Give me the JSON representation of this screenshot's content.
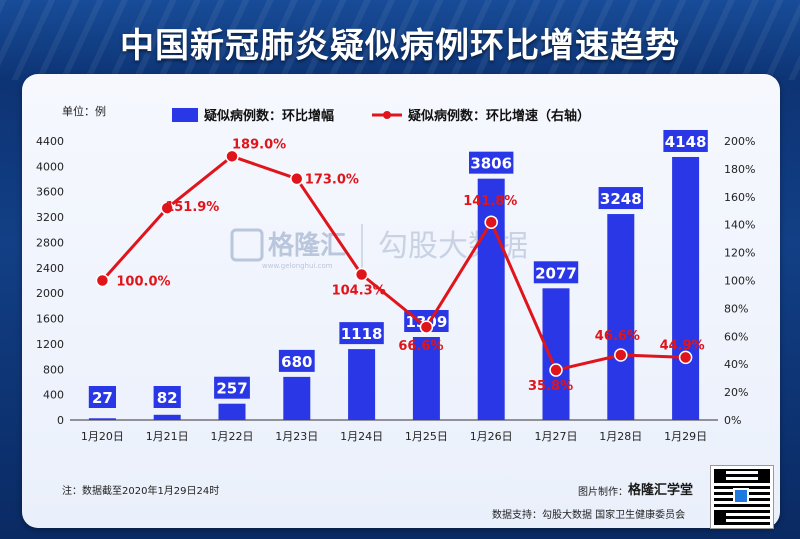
{
  "title": "中国新冠肺炎疑似病例环比增速趋势",
  "unit_label": "单位：例",
  "watermark_brand": "格隆汇",
  "watermark_url": "www.gelonghui.com",
  "watermark_text": "勾股大数据",
  "footnote": "注：数据截至2020年1月29日24时",
  "credit_made_by": "图片制作：",
  "credit_brand": "格隆汇学堂",
  "credit_source": "数据支持：勾股大数据 国家卫生健康委员会",
  "colors": {
    "bar": "#2a37e6",
    "line": "#e0141b",
    "background": "#0b2e6b",
    "card": "#f2f5fd"
  },
  "chart_data": {
    "type": "bar",
    "categories": [
      "1月20日",
      "1月21日",
      "1月22日",
      "1月23日",
      "1月24日",
      "1月25日",
      "1月26日",
      "1月27日",
      "1月28日",
      "1月29日"
    ],
    "series": [
      {
        "name": "疑似病例数：环比增幅",
        "type": "bar",
        "axis": "left",
        "values": [
          27,
          82,
          257,
          680,
          1118,
          1309,
          3806,
          2077,
          3248,
          4148
        ],
        "labels": [
          "27",
          "82",
          "257",
          "680",
          "1118",
          "1309",
          "3806",
          "2077",
          "3248",
          "4148"
        ]
      },
      {
        "name": "疑似病例数：环比增速（右轴）",
        "type": "line",
        "axis": "right",
        "values": [
          100.0,
          151.9,
          189.0,
          173.0,
          104.3,
          66.6,
          141.8,
          35.8,
          46.6,
          44.9
        ],
        "labels": [
          "100.0%",
          "151.9%",
          "189.0%",
          "173.0%",
          "104.3%",
          "66.6%",
          "141.8%",
          "35.8%",
          "46.6%",
          "44.9%"
        ]
      }
    ],
    "y_left": {
      "min": 0,
      "max": 4400,
      "ticks": [
        "0",
        "400",
        "800",
        "1200",
        "1600",
        "2000",
        "2400",
        "2800",
        "3200",
        "3600",
        "4000",
        "4400"
      ]
    },
    "y_right": {
      "min": 0,
      "max": 200,
      "ticks": [
        "0%",
        "20%",
        "40%",
        "60%",
        "80%",
        "100%",
        "120%",
        "140%",
        "160%",
        "180%",
        "200%"
      ]
    },
    "grid": false,
    "legend": "top"
  }
}
